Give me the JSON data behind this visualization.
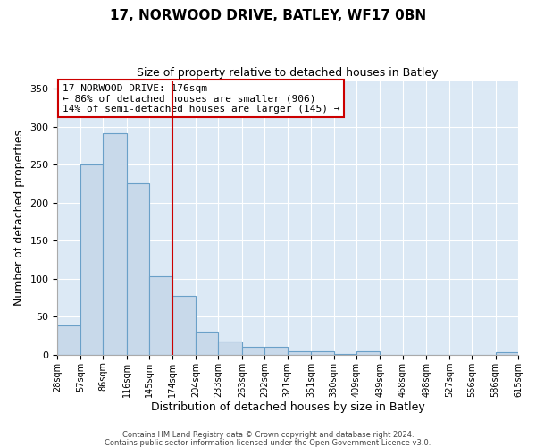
{
  "title": "17, NORWOOD DRIVE, BATLEY, WF17 0BN",
  "subtitle": "Size of property relative to detached houses in Batley",
  "xlabel": "Distribution of detached houses by size in Batley",
  "ylabel": "Number of detached properties",
  "bar_values": [
    39,
    250,
    291,
    225,
    103,
    77,
    30,
    17,
    10,
    10,
    4,
    4,
    1,
    4,
    0,
    0,
    0,
    0,
    0,
    3
  ],
  "bin_labels": [
    "28sqm",
    "57sqm",
    "86sqm",
    "116sqm",
    "145sqm",
    "174sqm",
    "204sqm",
    "233sqm",
    "263sqm",
    "292sqm",
    "321sqm",
    "351sqm",
    "380sqm",
    "409sqm",
    "439sqm",
    "468sqm",
    "498sqm",
    "527sqm",
    "556sqm",
    "586sqm",
    "615sqm"
  ],
  "bin_edges": [
    28,
    57,
    86,
    116,
    145,
    174,
    204,
    233,
    263,
    292,
    321,
    351,
    380,
    409,
    439,
    468,
    498,
    527,
    556,
    586,
    615
  ],
  "bar_color": "#c8d9ea",
  "bar_edge_color": "#6aa0c8",
  "vline_x": 174,
  "vline_color": "#cc0000",
  "annotation_text": "17 NORWOOD DRIVE: 176sqm\n← 86% of detached houses are smaller (906)\n14% of semi-detached houses are larger (145) →",
  "annotation_box_color": "#ffffff",
  "annotation_box_edge_color": "#cc0000",
  "ylim": [
    0,
    360
  ],
  "yticks": [
    0,
    50,
    100,
    150,
    200,
    250,
    300,
    350
  ],
  "footer_line1": "Contains HM Land Registry data © Crown copyright and database right 2024.",
  "footer_line2": "Contains public sector information licensed under the Open Government Licence v3.0.",
  "bg_color": "#ffffff",
  "plot_bg_color": "#dce9f5"
}
